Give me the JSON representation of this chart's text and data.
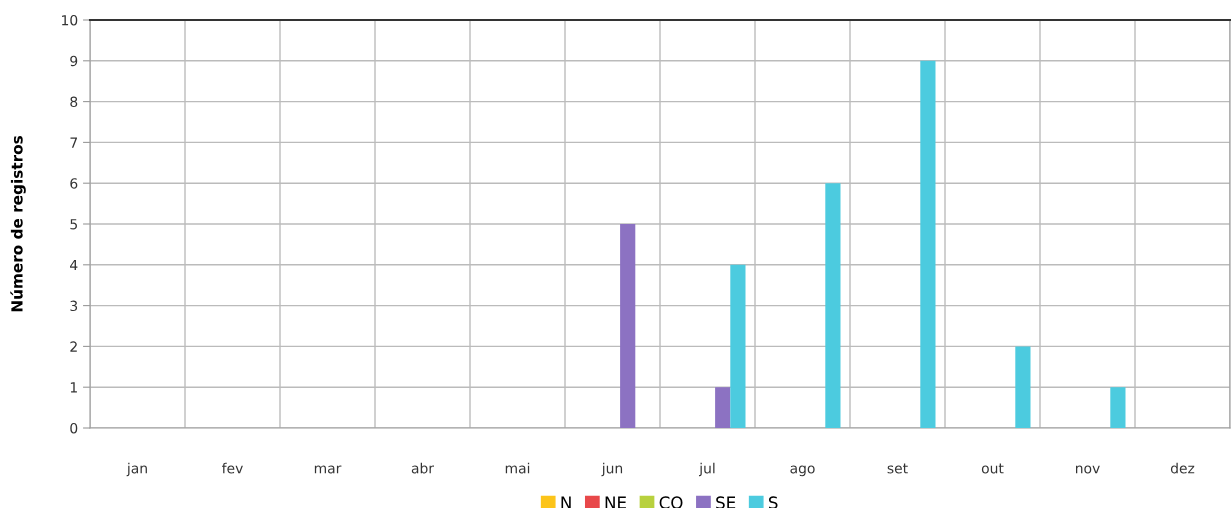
{
  "chart_data": {
    "type": "bar",
    "ylabel": "Número de registros",
    "categories": [
      "jan",
      "fev",
      "mar",
      "abr",
      "mai",
      "jun",
      "jul",
      "ago",
      "set",
      "out",
      "nov",
      "dez"
    ],
    "series": [
      {
        "name": "N",
        "color": "#fcc419",
        "values": [
          0,
          0,
          0,
          0,
          0,
          0,
          0,
          0,
          0,
          0,
          0,
          0
        ]
      },
      {
        "name": "NE",
        "color": "#e8484a",
        "values": [
          0,
          0,
          0,
          0,
          0,
          0,
          0,
          0,
          0,
          0,
          0,
          0
        ]
      },
      {
        "name": "CO",
        "color": "#b8d13e",
        "values": [
          0,
          0,
          0,
          0,
          0,
          0,
          0,
          0,
          0,
          0,
          0,
          0
        ]
      },
      {
        "name": "SE",
        "color": "#8c72c2",
        "values": [
          0,
          0,
          0,
          0,
          0,
          5,
          1,
          0,
          0,
          0,
          0,
          0
        ]
      },
      {
        "name": "S",
        "color": "#4ccbdf",
        "values": [
          0,
          0,
          0,
          0,
          0,
          0,
          4,
          6,
          9,
          2,
          1,
          0
        ]
      }
    ],
    "ylim": [
      0,
      10
    ],
    "yticks": [
      0,
      1,
      2,
      3,
      4,
      5,
      6,
      7,
      8,
      9,
      10
    ],
    "grid": true,
    "legend": "bottom"
  }
}
